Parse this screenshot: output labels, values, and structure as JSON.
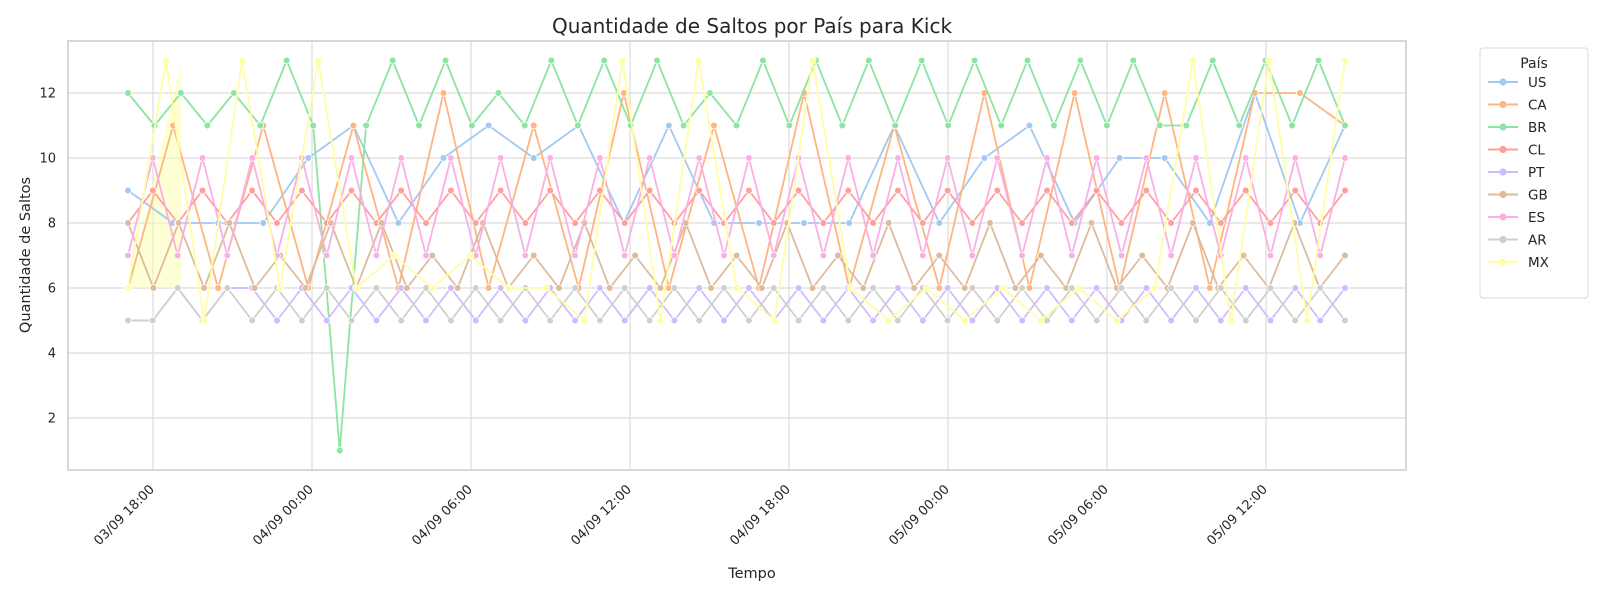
{
  "chart_data": {
    "type": "line",
    "title": "Quantidade de Saltos por País para Kick",
    "xlabel": "Tempo",
    "ylabel": "Quantidade de Saltos",
    "x_tick_labels": [
      "03/09 18:00",
      "04/09 00:00",
      "04/09 06:00",
      "04/09 12:00",
      "04/09 18:00",
      "05/09 00:00",
      "05/09 06:00",
      "05/09 12:00"
    ],
    "y_ticks": [
      2,
      4,
      6,
      8,
      10,
      12
    ],
    "ylim": [
      0.4,
      13.6
    ],
    "grid": true,
    "legend_title": "País",
    "legend_position": "outside-top-right",
    "x_hours": [
      -1,
      0,
      1,
      2,
      3,
      4,
      5,
      6,
      7,
      8,
      9,
      10,
      11,
      12,
      13,
      14,
      15,
      16,
      17,
      18,
      19,
      20,
      21,
      22,
      23,
      24
    ],
    "series_values": [
      {
        "name": "US",
        "color": "#a1c9f4",
        "values": [
          9,
          8,
          8,
          8,
          10,
          11,
          8,
          10,
          11,
          10,
          11,
          8,
          11,
          8,
          8,
          8,
          8,
          11,
          8,
          10,
          11,
          8,
          10,
          10,
          8,
          12,
          8,
          11
        ]
      },
      {
        "name": "CA",
        "color": "#ffb482",
        "values": [
          6,
          11,
          6,
          11,
          6,
          11,
          6,
          12,
          6,
          11,
          6,
          12,
          6,
          11,
          6,
          12,
          6,
          11,
          6,
          12,
          6,
          12,
          6,
          12,
          6,
          12,
          12,
          11
        ]
      },
      {
        "name": "BR",
        "color": "#8de5a1",
        "values": [
          12,
          11,
          12,
          11,
          12,
          11,
          13,
          11,
          1,
          11,
          13,
          11,
          13,
          11,
          12,
          11,
          13,
          11,
          13,
          11,
          13,
          11,
          12,
          11,
          13,
          11,
          13,
          11,
          13,
          11,
          13,
          11,
          13,
          11,
          13,
          11,
          13,
          11,
          13,
          11,
          11,
          13,
          11,
          13,
          11,
          13,
          11
        ]
      },
      {
        "name": "CL",
        "color": "#ff9f9b",
        "values": [
          8,
          9,
          8,
          9,
          8,
          9,
          8,
          9,
          8,
          9,
          8,
          9,
          8,
          9,
          8,
          9,
          8,
          9,
          8,
          9,
          8,
          9,
          8,
          9,
          8,
          9,
          8,
          9,
          8,
          9,
          8,
          9,
          8,
          9,
          8,
          9,
          8,
          9,
          8,
          9,
          8,
          9,
          8,
          9,
          8,
          9,
          8,
          9,
          8,
          9
        ]
      },
      {
        "name": "PT",
        "color": "#d0bbff",
        "values": [
          5,
          5,
          6,
          5,
          6,
          6,
          5,
          6,
          5,
          6,
          5,
          6,
          5,
          6,
          5,
          6,
          5,
          6,
          5,
          6,
          5,
          6,
          5,
          6,
          5,
          6,
          5,
          6,
          5,
          6,
          5,
          6,
          5,
          6,
          5,
          6,
          5,
          6,
          5,
          6,
          5,
          6,
          5,
          6,
          5,
          6,
          5,
          6,
          5,
          6
        ]
      },
      {
        "name": "GB",
        "color": "#debb9b",
        "values": [
          8,
          6,
          8,
          6,
          8,
          6,
          7,
          6,
          8,
          6,
          8,
          6,
          7,
          6,
          8,
          6,
          7,
          6,
          8,
          6,
          7,
          6,
          8,
          6,
          7,
          6,
          8,
          6,
          7,
          6,
          8,
          6,
          7,
          6,
          8,
          6,
          7,
          6,
          8,
          6,
          7,
          6,
          8,
          6,
          7,
          6,
          8,
          6,
          7
        ]
      },
      {
        "name": "ES",
        "color": "#fab0e4",
        "values": [
          7,
          10,
          7,
          10,
          7,
          10,
          7,
          10,
          7,
          10,
          7,
          10,
          7,
          10,
          7,
          10,
          7,
          10,
          7,
          10,
          7,
          10,
          7,
          10,
          7,
          10,
          7,
          10,
          7,
          10,
          7,
          10,
          7,
          10,
          7,
          10,
          7,
          10,
          7,
          10,
          7,
          10,
          7,
          10,
          7,
          10,
          7,
          10,
          7,
          10
        ]
      },
      {
        "name": "AR",
        "color": "#cfcfcf",
        "values": [
          5,
          5,
          6,
          5,
          6,
          5,
          6,
          5,
          6,
          5,
          6,
          5,
          6,
          5,
          6,
          5,
          6,
          5,
          6,
          5,
          6,
          5,
          6,
          5,
          6,
          5,
          6,
          5,
          6,
          5,
          6,
          5,
          6,
          5,
          6,
          5,
          6,
          5,
          6,
          5,
          6,
          5,
          6,
          5,
          6,
          5,
          6,
          5,
          6,
          5
        ]
      },
      {
        "name": "MX",
        "color": "#fffea3",
        "values": [
          6,
          13,
          5,
          13,
          6,
          13,
          6,
          7,
          6,
          7,
          6,
          6,
          5,
          13,
          5,
          13,
          6,
          5,
          13,
          6,
          5,
          6,
          5,
          6,
          5,
          6,
          5,
          6,
          13,
          5,
          13,
          5,
          13
        ]
      }
    ]
  }
}
